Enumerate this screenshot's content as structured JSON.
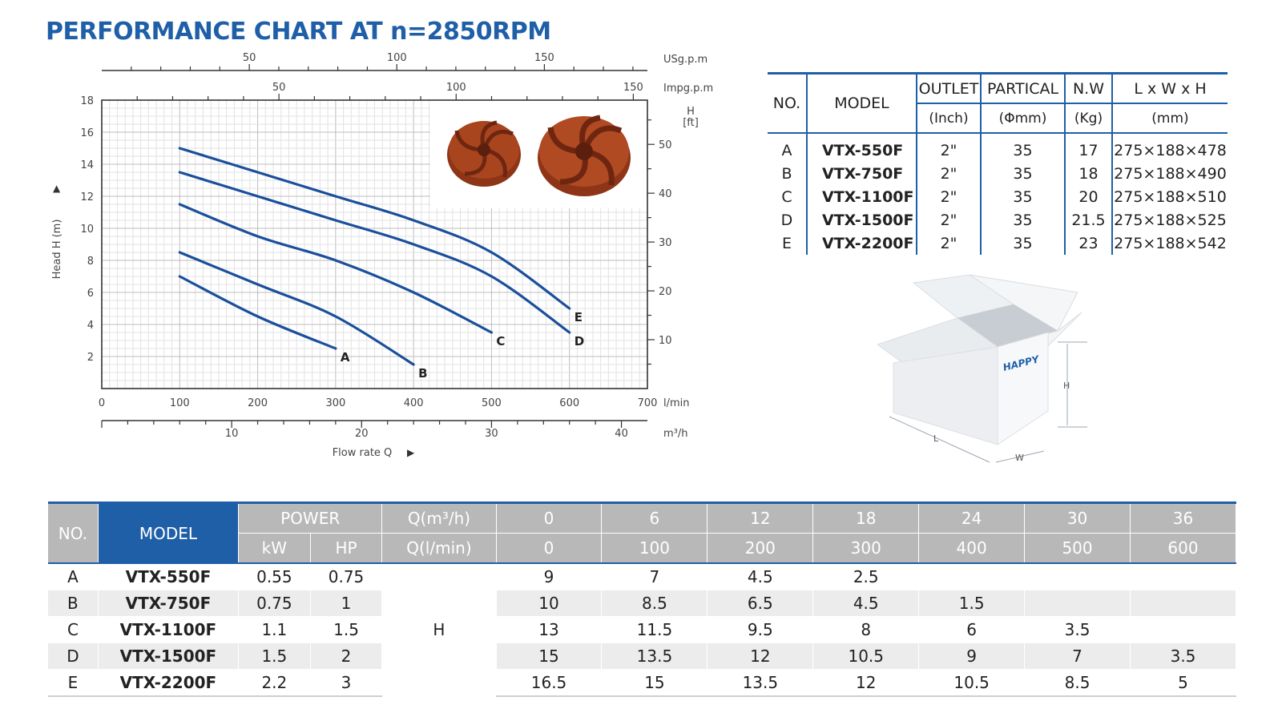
{
  "title": "PERFORMANCE CHART AT n=2850RPM",
  "colors": {
    "accent": "#1f5fa8",
    "curve": "#1a4f9c",
    "header_gray": "#b8b8b8",
    "impeller": "#9c3a1c"
  },
  "chart_data": {
    "type": "line",
    "title": "",
    "xlabel": "Flow rate Q",
    "ylabel": "Head H (m)",
    "x_unit": "l/min",
    "xlim": [
      0,
      700
    ],
    "ylim": [
      0,
      18
    ],
    "x_ticks": [
      0,
      100,
      200,
      300,
      400,
      500,
      600,
      700
    ],
    "y_ticks": [
      2,
      4,
      6,
      8,
      10,
      12,
      14,
      16,
      18
    ],
    "grid": true,
    "secondary_axes": {
      "usgpm": {
        "label": "USg.p.m",
        "ticks": [
          50,
          100,
          150
        ]
      },
      "impgpm": {
        "label": "Impg.p.m",
        "ticks": [
          50,
          100,
          150
        ]
      },
      "m3h": {
        "label": "m³/h",
        "ticks": [
          10,
          20,
          30,
          40
        ]
      },
      "ft": {
        "label": "H",
        "unit": "[ft]",
        "ticks": [
          10,
          20,
          30,
          40,
          50
        ]
      }
    },
    "series": [
      {
        "name": "A",
        "x": [
          100,
          200,
          300
        ],
        "y": [
          7,
          4.5,
          2.5
        ]
      },
      {
        "name": "B",
        "x": [
          100,
          200,
          300,
          400
        ],
        "y": [
          8.5,
          6.5,
          4.5,
          1.5
        ]
      },
      {
        "name": "C",
        "x": [
          100,
          200,
          300,
          400,
          500
        ],
        "y": [
          11.5,
          9.5,
          8,
          6,
          3.5
        ]
      },
      {
        "name": "D",
        "x": [
          100,
          200,
          300,
          400,
          500,
          600
        ],
        "y": [
          13.5,
          12,
          10.5,
          9,
          7,
          3.5
        ]
      },
      {
        "name": "E",
        "x": [
          100,
          200,
          300,
          400,
          500,
          600
        ],
        "y": [
          15,
          13.5,
          12,
          10.5,
          8.5,
          5
        ]
      }
    ]
  },
  "spec_table": {
    "headers_top": [
      "NO.",
      "MODEL",
      "OUTLET",
      "PARTICAL",
      "N.W",
      "L x W x H"
    ],
    "headers_units": [
      "(Inch)",
      "(Φmm)",
      "(Kg)",
      "(mm)"
    ],
    "rows": [
      [
        "A",
        "VTX-550F",
        "2\"",
        "35",
        "17",
        "275×188×478"
      ],
      [
        "B",
        "VTX-750F",
        "2\"",
        "35",
        "18",
        "275×188×490"
      ],
      [
        "C",
        "VTX-1100F",
        "2\"",
        "35",
        "20",
        "275×188×510"
      ],
      [
        "D",
        "VTX-1500F",
        "2\"",
        "35",
        "21.5",
        "275×188×525"
      ],
      [
        "E",
        "VTX-2200F",
        "2\"",
        "35",
        "23",
        "275×188×542"
      ]
    ]
  },
  "box": {
    "brand": "HAPPY",
    "dim_h": "H",
    "dim_l": "L",
    "dim_w": "W"
  },
  "perf_table": {
    "no": "NO.",
    "model": "MODEL",
    "power": "POWER",
    "kw": "kW",
    "hp": "HP",
    "q_m3h": "Q(m³/h)",
    "q_lmin": "Q(l/min)",
    "m3h_values": [
      "0",
      "6",
      "12",
      "18",
      "24",
      "30",
      "36"
    ],
    "lmin_values": [
      "0",
      "100",
      "200",
      "300",
      "400",
      "500",
      "600"
    ],
    "h_label": "H",
    "rows": [
      {
        "no": "A",
        "model": "VTX-550F",
        "kw": "0.55",
        "hp": "0.75",
        "h": [
          "9",
          "7",
          "4.5",
          "2.5",
          "",
          "",
          ""
        ]
      },
      {
        "no": "B",
        "model": "VTX-750F",
        "kw": "0.75",
        "hp": "1",
        "h": [
          "10",
          "8.5",
          "6.5",
          "4.5",
          "1.5",
          "",
          ""
        ]
      },
      {
        "no": "C",
        "model": "VTX-1100F",
        "kw": "1.1",
        "hp": "1.5",
        "h": [
          "13",
          "11.5",
          "9.5",
          "8",
          "6",
          "3.5",
          ""
        ]
      },
      {
        "no": "D",
        "model": "VTX-1500F",
        "kw": "1.5",
        "hp": "2",
        "h": [
          "15",
          "13.5",
          "12",
          "10.5",
          "9",
          "7",
          "3.5"
        ]
      },
      {
        "no": "E",
        "model": "VTX-2200F",
        "kw": "2.2",
        "hp": "3",
        "h": [
          "16.5",
          "15",
          "13.5",
          "12",
          "10.5",
          "8.5",
          "5"
        ]
      }
    ]
  }
}
